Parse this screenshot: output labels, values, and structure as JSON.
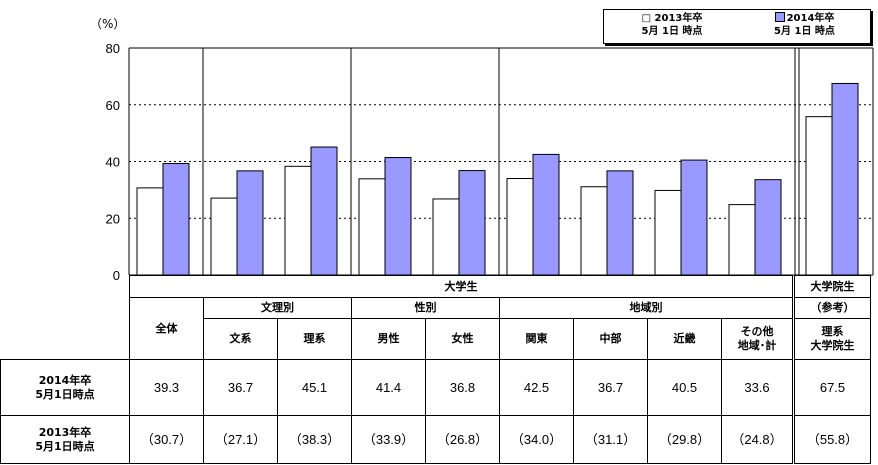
{
  "chart_data": {
    "type": "bar",
    "y_unit": "（%）",
    "ylim": [
      0,
      80
    ],
    "yticks": [
      "0",
      "20",
      "40",
      "60",
      "80"
    ],
    "categories": [
      "全体",
      "文系",
      "理系",
      "男性",
      "女性",
      "関東",
      "中部",
      "近畿",
      "その他\n地域・計",
      "理系\n大学院生"
    ],
    "series": [
      {
        "name": "2013年卒\n5月1日時点",
        "values": [
          30.7,
          27.1,
          38.3,
          33.9,
          26.8,
          34.0,
          31.1,
          29.8,
          24.8,
          55.8
        ],
        "color": "#ffffff"
      },
      {
        "name": "2014年卒\n5月1日時点",
        "values": [
          39.3,
          36.7,
          45.1,
          41.4,
          36.8,
          42.5,
          36.7,
          40.5,
          33.6,
          67.5
        ],
        "color": "#9999ff"
      }
    ],
    "grid": "dotted-horizontal",
    "legend_position": "top-right"
  },
  "legend": {
    "item1_line1": "□ 2013年卒",
    "item1_line2": "5月 1日 時点",
    "item2_line1": "2014年卒",
    "item2_line2": "5月 1日 時点"
  },
  "table": {
    "group_university": "大学生",
    "group_graduate": "大学院生",
    "sub_bunri": "文理別",
    "sub_sex": "性別",
    "sub_region": "地域別",
    "ref": "（参考）",
    "col_all": "全体",
    "col_bunkei": "文系",
    "col_rikei": "理系",
    "col_male": "男性",
    "col_female": "女性",
    "col_kanto": "関東",
    "col_chubu": "中部",
    "col_kinki": "近畿",
    "col_other_l1": "その他",
    "col_other_l2": "地域･計",
    "col_grad_l1": "理系",
    "col_grad_l2": "大学院生",
    "row2014_l1": "2014年卒",
    "row2014_l2": "5月1日時点",
    "row2013_l1": "2013年卒",
    "row2013_l2": "5月1日時点",
    "v2014": [
      "39.3",
      "36.7",
      "45.1",
      "41.4",
      "36.8",
      "42.5",
      "36.7",
      "40.5",
      "33.6",
      "67.5"
    ],
    "v2013": [
      "（30.7）",
      "（27.1）",
      "（38.3）",
      "（33.9）",
      "（26.8）",
      "（34.0）",
      "（31.1）",
      "（29.8）",
      "（24.8）",
      "（55.8）"
    ]
  }
}
